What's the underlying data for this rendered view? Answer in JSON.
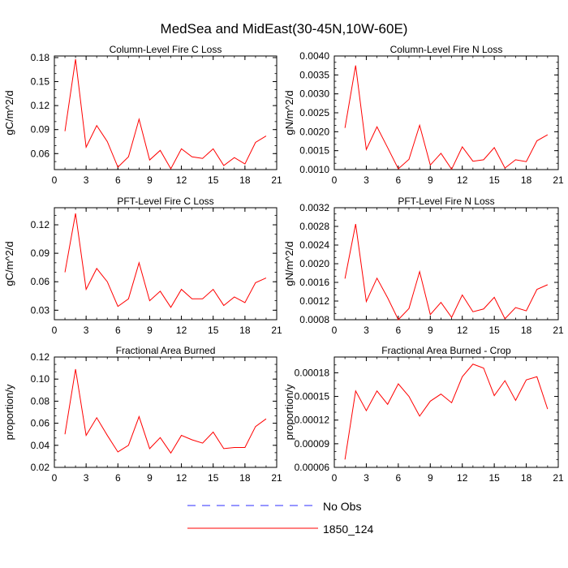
{
  "figure_title": "MedSea and MidEast(30-45N,10W-60E)",
  "legend": {
    "entries": [
      {
        "label": "No Obs",
        "style": "dashed",
        "color": "#2d2dff"
      },
      {
        "label": "1850_124",
        "style": "solid",
        "color": "#ff0000"
      }
    ]
  },
  "chart_data": [
    {
      "type": "line",
      "title": "Column-Level Fire C Loss",
      "ylabel": "gC/m^2/d",
      "xlim": [
        0,
        21
      ],
      "ylim": [
        0.04,
        0.182
      ],
      "xticks": [
        "0",
        "3",
        "6",
        "9",
        "12",
        "15",
        "18",
        "21"
      ],
      "yticks": [
        "0.06",
        "0.09",
        "0.12",
        "0.15",
        "0.18"
      ],
      "ytick_values": [
        0.06,
        0.09,
        0.12,
        0.15,
        0.18
      ],
      "series": [
        {
          "name": "1850_124",
          "color": "#ff0000",
          "x": [
            1,
            2,
            3,
            4,
            5,
            6,
            7,
            8,
            9,
            10,
            11,
            12,
            13,
            14,
            15,
            16,
            17,
            18,
            19,
            20
          ],
          "values": [
            0.088,
            0.178,
            0.068,
            0.095,
            0.075,
            0.043,
            0.056,
            0.103,
            0.052,
            0.064,
            0.041,
            0.066,
            0.056,
            0.054,
            0.066,
            0.045,
            0.055,
            0.047,
            0.074,
            0.082
          ]
        }
      ]
    },
    {
      "type": "line",
      "title": "Column-Level Fire N Loss",
      "ylabel": "gN/m^2/d",
      "xlim": [
        0,
        21
      ],
      "ylim": [
        0.001,
        0.004
      ],
      "xticks": [
        "0",
        "3",
        "6",
        "9",
        "12",
        "15",
        "18",
        "21"
      ],
      "yticks": [
        "0.0010",
        "0.0015",
        "0.0020",
        "0.0025",
        "0.0030",
        "0.0035",
        "0.0040"
      ],
      "ytick_values": [
        0.001,
        0.0015,
        0.002,
        0.0025,
        0.003,
        0.0035,
        0.004
      ],
      "series": [
        {
          "name": "1850_124",
          "color": "#ff0000",
          "x": [
            1,
            2,
            3,
            4,
            5,
            6,
            7,
            8,
            9,
            10,
            11,
            12,
            13,
            14,
            15,
            16,
            17,
            18,
            19,
            20
          ],
          "values": [
            0.0021,
            0.00375,
            0.00153,
            0.00213,
            0.00158,
            0.00102,
            0.00127,
            0.00217,
            0.00112,
            0.00143,
            0.00101,
            0.0016,
            0.00122,
            0.00126,
            0.00158,
            0.00104,
            0.00126,
            0.00121,
            0.00176,
            0.00192
          ]
        }
      ]
    },
    {
      "type": "line",
      "title": "PFT-Level Fire C Loss",
      "ylabel": "gC/m^2/d",
      "xlim": [
        0,
        21
      ],
      "ylim": [
        0.02,
        0.138
      ],
      "xticks": [
        "0",
        "3",
        "6",
        "9",
        "12",
        "15",
        "18",
        "21"
      ],
      "yticks": [
        "0.03",
        "0.06",
        "0.09",
        "0.12"
      ],
      "ytick_values": [
        0.03,
        0.06,
        0.09,
        0.12
      ],
      "series": [
        {
          "name": "1850_124",
          "color": "#ff0000",
          "x": [
            1,
            2,
            3,
            4,
            5,
            6,
            7,
            8,
            9,
            10,
            11,
            12,
            13,
            14,
            15,
            16,
            17,
            18,
            19,
            20
          ],
          "values": [
            0.07,
            0.132,
            0.052,
            0.074,
            0.06,
            0.034,
            0.042,
            0.08,
            0.04,
            0.05,
            0.033,
            0.052,
            0.042,
            0.042,
            0.052,
            0.035,
            0.044,
            0.038,
            0.059,
            0.064
          ]
        }
      ]
    },
    {
      "type": "line",
      "title": "PFT-Level Fire N Loss",
      "ylabel": "gN/m^2/d",
      "xlim": [
        0,
        21
      ],
      "ylim": [
        0.0008,
        0.0032
      ],
      "xticks": [
        "0",
        "3",
        "6",
        "9",
        "12",
        "15",
        "18",
        "21"
      ],
      "yticks": [
        "0.0008",
        "0.0012",
        "0.0016",
        "0.0020",
        "0.0024",
        "0.0028",
        "0.0032"
      ],
      "ytick_values": [
        0.0008,
        0.0012,
        0.0016,
        0.002,
        0.0024,
        0.0028,
        0.0032
      ],
      "series": [
        {
          "name": "1850_124",
          "color": "#ff0000",
          "x": [
            1,
            2,
            3,
            4,
            5,
            6,
            7,
            8,
            9,
            10,
            11,
            12,
            13,
            14,
            15,
            16,
            17,
            18,
            19,
            20
          ],
          "values": [
            0.00168,
            0.00285,
            0.00119,
            0.00169,
            0.00127,
            0.0008,
            0.00104,
            0.00183,
            0.00091,
            0.00117,
            0.00085,
            0.00133,
            0.00097,
            0.00103,
            0.00128,
            0.00082,
            0.00106,
            0.00099,
            0.00145,
            0.00155
          ]
        }
      ]
    },
    {
      "type": "line",
      "title": "Fractional Area Burned",
      "ylabel": "proportion/y",
      "xlim": [
        0,
        21
      ],
      "ylim": [
        0.02,
        0.12
      ],
      "xticks": [
        "0",
        "3",
        "6",
        "9",
        "12",
        "15",
        "18",
        "21"
      ],
      "yticks": [
        "0.02",
        "0.04",
        "0.06",
        "0.08",
        "0.10",
        "0.12"
      ],
      "ytick_values": [
        0.02,
        0.04,
        0.06,
        0.08,
        0.1,
        0.12
      ],
      "series": [
        {
          "name": "1850_124",
          "color": "#ff0000",
          "x": [
            1,
            2,
            3,
            4,
            5,
            6,
            7,
            8,
            9,
            10,
            11,
            12,
            13,
            14,
            15,
            16,
            17,
            18,
            19,
            20
          ],
          "values": [
            0.05,
            0.109,
            0.049,
            0.065,
            0.049,
            0.034,
            0.04,
            0.066,
            0.037,
            0.047,
            0.033,
            0.049,
            0.045,
            0.042,
            0.052,
            0.037,
            0.038,
            0.038,
            0.057,
            0.064
          ]
        }
      ]
    },
    {
      "type": "line",
      "title": "Fractional Area Burned - Crop",
      "ylabel": "proportion/y",
      "xlim": [
        0,
        21
      ],
      "ylim": [
        6e-05,
        0.0002
      ],
      "xticks": [
        "0",
        "3",
        "6",
        "9",
        "12",
        "15",
        "18",
        "21"
      ],
      "yticks": [
        "0.00006",
        "0.00009",
        "0.00012",
        "0.00015",
        "0.00018"
      ],
      "ytick_values": [
        6e-05,
        9e-05,
        0.00012,
        0.00015,
        0.00018
      ],
      "series": [
        {
          "name": "1850_124",
          "color": "#ff0000",
          "x": [
            1,
            2,
            3,
            4,
            5,
            6,
            7,
            8,
            9,
            10,
            11,
            12,
            13,
            14,
            15,
            16,
            17,
            18,
            19,
            20
          ],
          "values": [
            7e-05,
            0.000157,
            0.000132,
            0.000157,
            0.00014,
            0.000166,
            0.00015,
            0.000125,
            0.000144,
            0.000153,
            0.000142,
            0.000175,
            0.000191,
            0.000186,
            0.000151,
            0.00017,
            0.000145,
            0.000171,
            0.000175,
            0.000134
          ]
        }
      ]
    }
  ]
}
